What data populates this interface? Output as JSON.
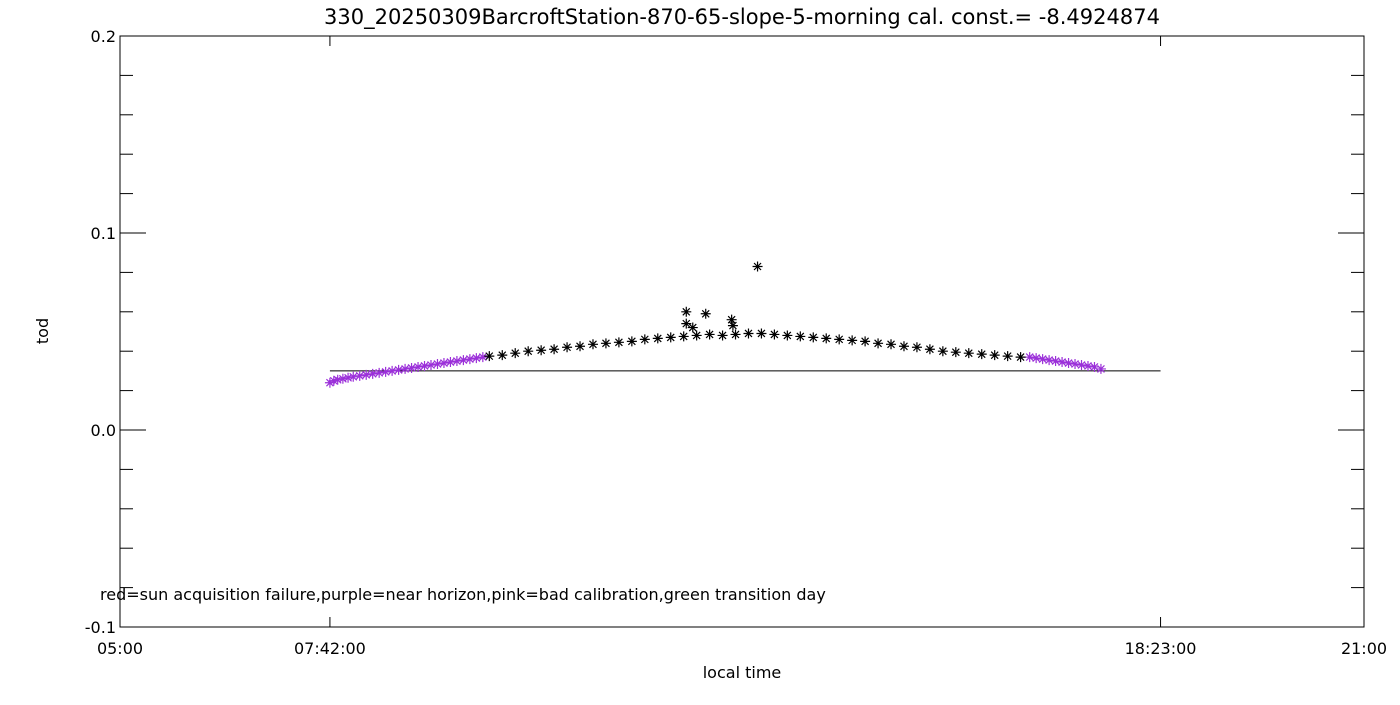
{
  "chart_data": {
    "type": "scatter",
    "title": "330_20250309BarcroftStation-870-65-slope-5-morning cal. const.= -8.4924874",
    "xlabel": "local time",
    "ylabel": "tod",
    "xlim": [
      "05:00",
      "21:00"
    ],
    "ylim": [
      -0.1,
      0.2
    ],
    "x_ticks": [
      "05:00",
      "07:42:00",
      "18:23:00",
      "21:00"
    ],
    "y_ticks": [
      "-0.1",
      "0.0",
      "0.1",
      "0.2"
    ],
    "reference_line": {
      "y": 0.03,
      "x_start": "07:42:00",
      "x_end": "18:23:00",
      "color": "#000000"
    },
    "note": "red=sun acquisition failure,purple=near horizon,pink=bad calibration,green transition day",
    "colors": {
      "normal": "#000000",
      "near_horizon": "#9b30d9",
      "axis": "#000000"
    },
    "marker": "asterisk",
    "series": [
      {
        "category": "near horizon",
        "color": "#9b30d9",
        "x": [
          "07:42",
          "07:45",
          "07:48",
          "07:52",
          "07:56",
          "08:00",
          "08:05",
          "08:10",
          "08:15",
          "08:20",
          "08:25",
          "08:30",
          "08:35",
          "08:40",
          "08:45",
          "08:50",
          "08:55",
          "09:00",
          "09:05",
          "09:10",
          "09:15",
          "09:20",
          "09:25",
          "09:30",
          "09:35",
          "09:40",
          "16:42",
          "16:47",
          "16:52",
          "16:57",
          "17:02",
          "17:07",
          "17:12",
          "17:17",
          "17:22",
          "17:27",
          "17:32",
          "17:37"
        ],
        "y": [
          0.024,
          0.025,
          0.0255,
          0.026,
          0.0265,
          0.027,
          0.0275,
          0.028,
          0.0285,
          0.029,
          0.0295,
          0.03,
          0.0305,
          0.031,
          0.0315,
          0.032,
          0.0325,
          0.033,
          0.0335,
          0.034,
          0.0345,
          0.035,
          0.0355,
          0.036,
          0.0365,
          0.037,
          0.037,
          0.0365,
          0.036,
          0.0355,
          0.035,
          0.0345,
          0.034,
          0.0335,
          0.033,
          0.0325,
          0.032,
          0.031
        ]
      },
      {
        "category": "normal",
        "color": "#000000",
        "x": [
          "09:45",
          "09:55",
          "10:05",
          "10:15",
          "10:25",
          "10:35",
          "10:45",
          "10:55",
          "11:05",
          "11:15",
          "11:25",
          "11:35",
          "11:45",
          "11:55",
          "12:05",
          "12:15",
          "12:25",
          "12:35",
          "12:45",
          "12:55",
          "13:05",
          "13:15",
          "13:25",
          "13:35",
          "13:45",
          "13:55",
          "14:05",
          "14:15",
          "14:25",
          "14:35",
          "14:45",
          "14:55",
          "15:05",
          "15:15",
          "15:25",
          "15:35",
          "15:45",
          "15:55",
          "16:05",
          "16:15",
          "16:25",
          "16:35",
          "12:17",
          "12:17",
          "12:22",
          "12:32",
          "12:52",
          "12:53",
          "13:12"
        ],
        "y": [
          0.0375,
          0.038,
          0.039,
          0.04,
          0.0405,
          0.041,
          0.042,
          0.0425,
          0.0435,
          0.044,
          0.0445,
          0.045,
          0.046,
          0.0465,
          0.047,
          0.0475,
          0.048,
          0.0485,
          0.048,
          0.0485,
          0.049,
          0.049,
          0.0485,
          0.048,
          0.0475,
          0.047,
          0.0465,
          0.046,
          0.0455,
          0.045,
          0.044,
          0.0435,
          0.0425,
          0.042,
          0.041,
          0.04,
          0.0395,
          0.039,
          0.0385,
          0.038,
          0.0375,
          0.037,
          0.06,
          0.054,
          0.052,
          0.059,
          0.056,
          0.053,
          0.083
        ]
      }
    ]
  }
}
